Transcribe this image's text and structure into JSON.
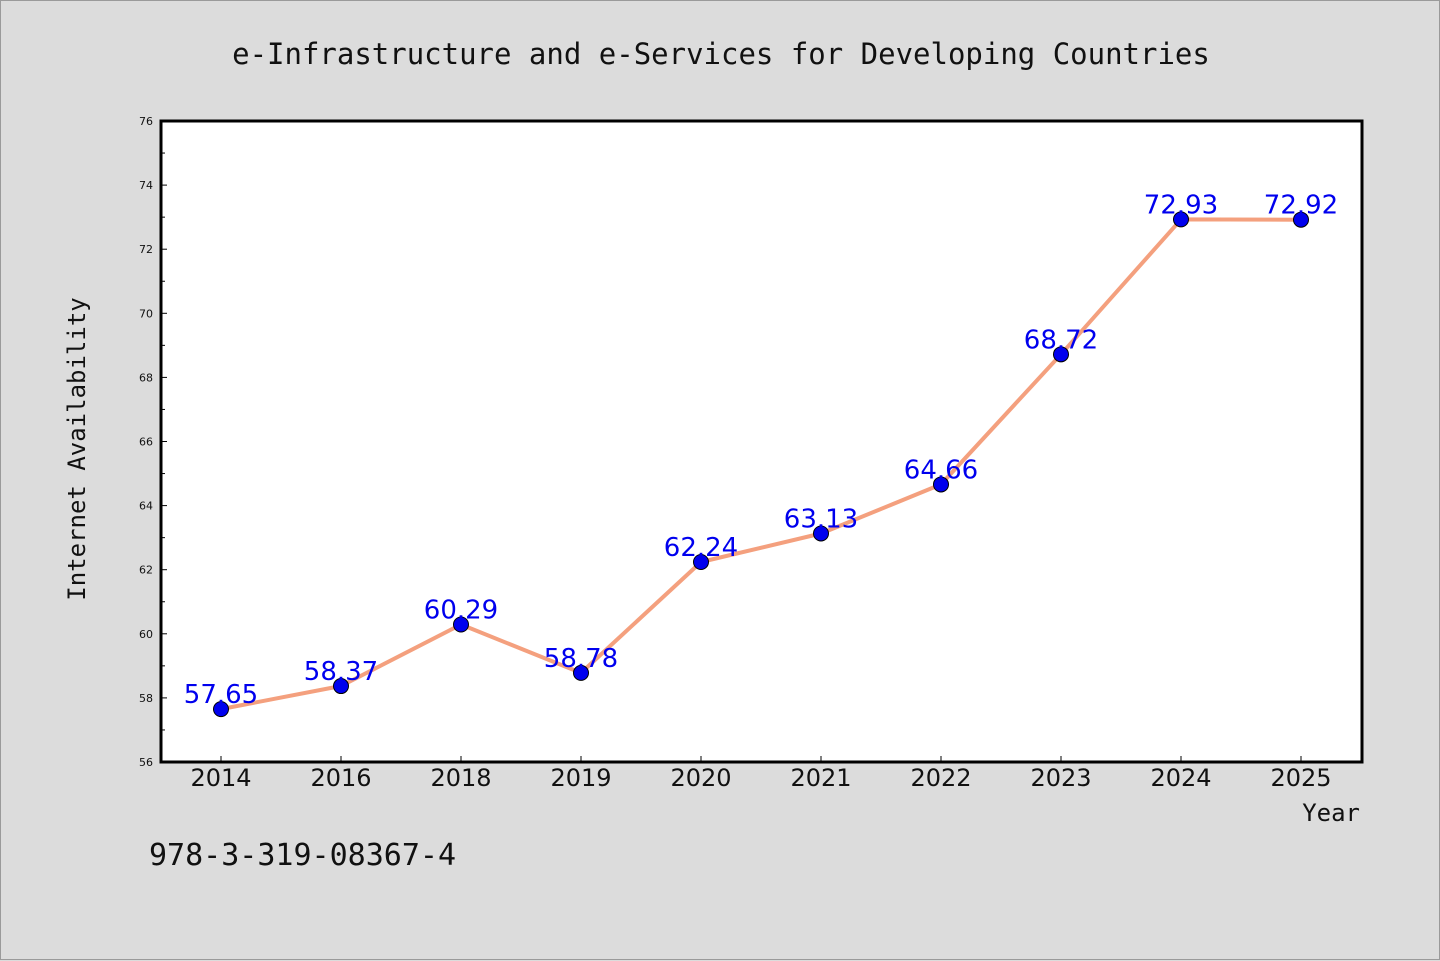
{
  "chart_data": {
    "type": "line",
    "title": "e-Infrastructure and e-Services for Developing Countries",
    "xlabel": "Year",
    "ylabel": "Internet Availability",
    "categories": [
      "2014",
      "2016",
      "2018",
      "2019",
      "2020",
      "2021",
      "2022",
      "2023",
      "2024",
      "2025"
    ],
    "values": [
      57.65,
      58.37,
      60.29,
      58.78,
      62.24,
      63.13,
      64.66,
      68.72,
      72.93,
      72.92
    ],
    "data_labels": [
      "57.65",
      "58.37",
      "60.29",
      "58.78",
      "62.24",
      "63.13",
      "64.66",
      "68.72",
      "72.93",
      "72.92"
    ],
    "ylim": [
      56,
      76
    ],
    "yticks": [
      56,
      58,
      60,
      62,
      64,
      66,
      68,
      70,
      72,
      74,
      76
    ],
    "ytick_labels": [
      "56",
      "58",
      "60",
      "62",
      "64",
      "66",
      "68",
      "70",
      "72",
      "74",
      "76"
    ],
    "grid": false,
    "line_color": "#f4a07e",
    "marker_color": "#0000ee",
    "label_color": "#0000ee",
    "plot_background": "#ffffff",
    "figure_background": "#dcdcdc"
  },
  "annotation": {
    "text": "978-3-319-08367-4"
  }
}
